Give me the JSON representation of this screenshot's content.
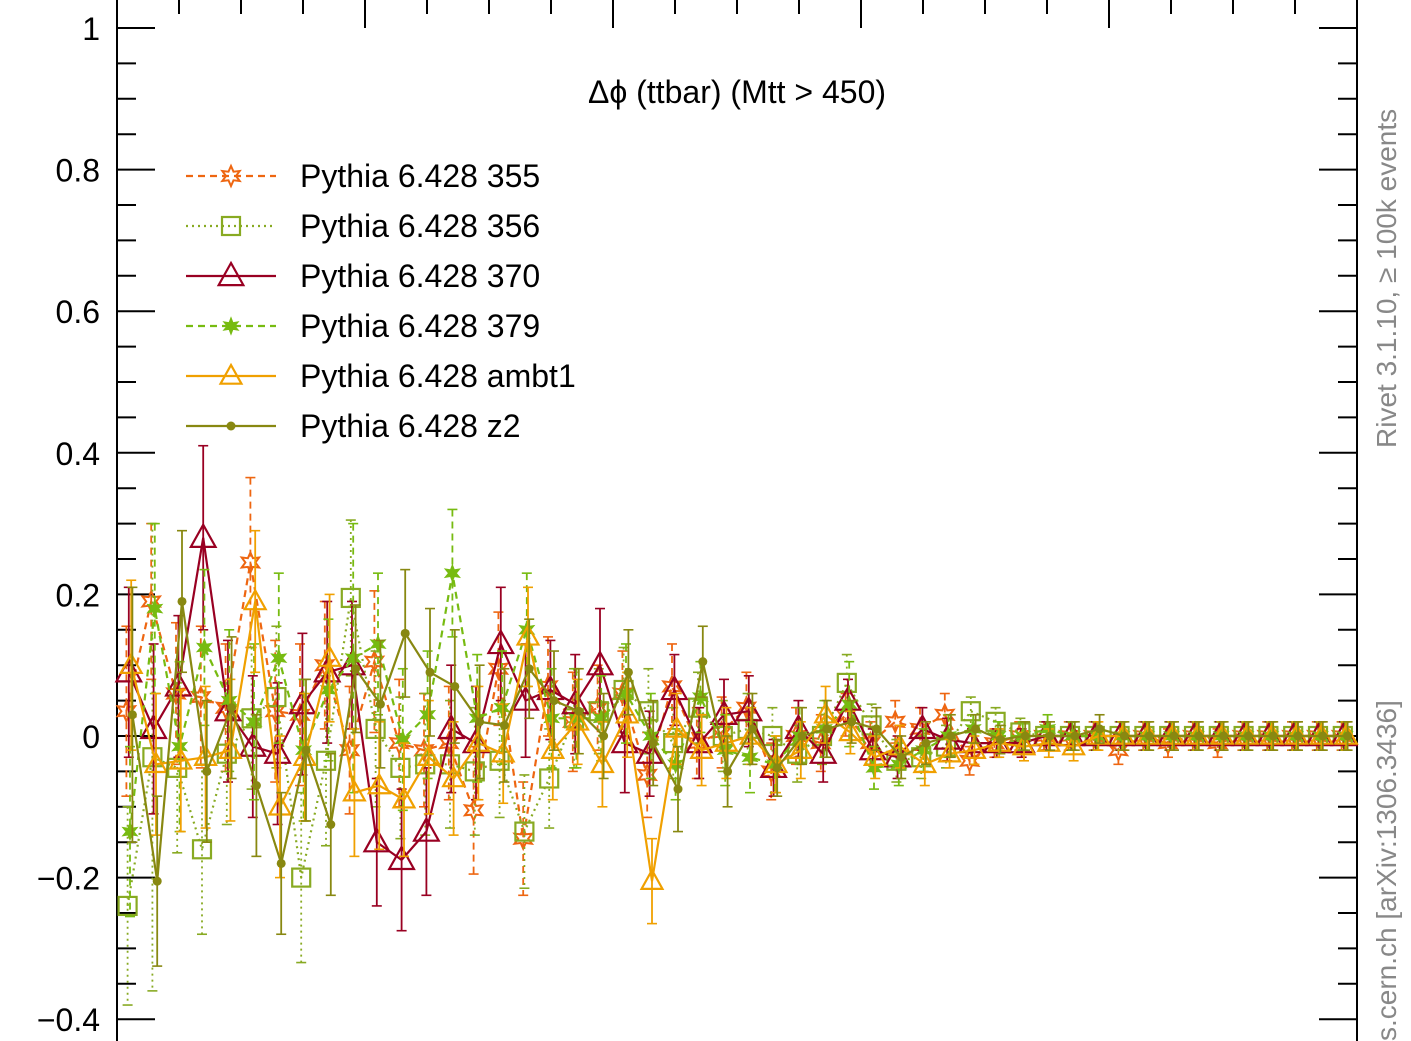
{
  "chart_data": {
    "type": "line",
    "title": "Δϕ (ttbar) (Mtt > 450)",
    "xlabel": "",
    "ylabel": "",
    "xlim": [
      0,
      50
    ],
    "ylim": [
      -0.4,
      1.0
    ],
    "y_ticks": [
      -0.4,
      -0.2,
      0,
      0.2,
      0.4,
      0.6,
      0.8,
      1
    ],
    "y_tick_labels": [
      "−0.4",
      "−0.2",
      "0",
      "0.2",
      "0.4",
      "0.6",
      "0.8",
      "1"
    ],
    "grid": false,
    "legend_position": "top-left",
    "side_label_top": "Rivet 3.1.10, ≥ 100k events",
    "side_label_bottom": "s.cern.ch [arXiv:1306.3436]",
    "x": [
      0.5,
      1.5,
      2.5,
      3.5,
      4.5,
      5.5,
      6.5,
      7.5,
      8.5,
      9.5,
      10.5,
      11.5,
      12.5,
      13.5,
      14.5,
      15.5,
      16.5,
      17.5,
      18.5,
      19.5,
      20.5,
      21.5,
      22.5,
      23.5,
      24.5,
      25.5,
      26.5,
      27.5,
      28.5,
      29.5,
      30.5,
      31.5,
      32.5,
      33.5,
      34.5,
      35.5,
      36.5,
      37.5,
      38.5,
      39.5,
      40.5,
      41.5,
      42.5,
      43.5,
      44.5,
      45.5,
      46.5,
      47.5,
      48.5,
      49.5
    ],
    "series": [
      {
        "name": "Pythia 6.428 355",
        "color": "#ee6611",
        "dash": "7,5",
        "marker": "star6",
        "values": [
          0.035,
          0.19,
          0.06,
          0.055,
          0.04,
          0.245,
          0.035,
          0.03,
          0.1,
          -0.02,
          0.105,
          -0.01,
          -0.02,
          -0.01,
          -0.105,
          0.095,
          -0.145,
          0.07,
          0.02,
          0.04,
          0.06,
          -0.055,
          0.07,
          -0.01,
          0.005,
          0.04,
          -0.05,
          0.0,
          -0.01,
          0.03,
          -0.01,
          0.02,
          0.01,
          0.03,
          -0.035,
          -0.01,
          0.0,
          0.0,
          0.0,
          0.0,
          -0.02,
          0.0,
          -0.01,
          0.0,
          -0.01,
          0.0,
          0.0,
          0.0,
          0.0,
          0.0
        ],
        "errors": [
          0.12,
          0.11,
          0.1,
          0.1,
          0.09,
          0.12,
          0.1,
          0.1,
          0.09,
          0.09,
          0.1,
          0.09,
          0.08,
          0.08,
          0.09,
          0.08,
          0.08,
          0.07,
          0.07,
          0.06,
          0.06,
          0.06,
          0.06,
          0.05,
          0.05,
          0.05,
          0.04,
          0.04,
          0.04,
          0.03,
          0.03,
          0.03,
          0.03,
          0.03,
          0.02,
          0.02,
          0.02,
          0.02,
          0.02,
          0.02,
          0.02,
          0.02,
          0.02,
          0.02,
          0.02,
          0.02,
          0.02,
          0.02,
          0.02,
          0.02
        ]
      },
      {
        "name": "Pythia 6.428 356",
        "color": "#88aa22",
        "dash": "2,4",
        "marker": "square",
        "values": [
          -0.24,
          -0.03,
          -0.045,
          -0.16,
          -0.025,
          0.025,
          0.055,
          -0.2,
          -0.035,
          0.195,
          0.01,
          -0.045,
          -0.04,
          -0.04,
          -0.05,
          -0.035,
          -0.135,
          -0.06,
          0.025,
          0.035,
          0.065,
          0.035,
          -0.01,
          0.04,
          0.0,
          0.01,
          0.0,
          -0.025,
          0.0,
          0.075,
          0.015,
          -0.035,
          -0.03,
          -0.015,
          0.035,
          0.02,
          0.005,
          0.0,
          0.0,
          0.0,
          0.0,
          0.0,
          0.0,
          0.0,
          0.0,
          0.0,
          0.0,
          0.0,
          0.0,
          0.0
        ],
        "errors": [
          0.14,
          0.33,
          0.12,
          0.12,
          0.1,
          0.1,
          0.1,
          0.12,
          0.12,
          0.11,
          0.11,
          0.1,
          0.1,
          0.09,
          0.09,
          0.08,
          0.08,
          0.07,
          0.07,
          0.06,
          0.06,
          0.06,
          0.05,
          0.05,
          0.05,
          0.05,
          0.04,
          0.04,
          0.04,
          0.04,
          0.03,
          0.03,
          0.03,
          0.03,
          0.02,
          0.02,
          0.02,
          0.02,
          0.02,
          0.02,
          0.02,
          0.02,
          0.02,
          0.02,
          0.02,
          0.02,
          0.02,
          0.02,
          0.02,
          0.02
        ]
      },
      {
        "name": "Pythia 6.428 370",
        "color": "#990022",
        "dash": "",
        "marker": "triangle-large",
        "values": [
          0.09,
          0.01,
          0.07,
          0.28,
          0.035,
          -0.015,
          -0.025,
          0.045,
          0.09,
          0.1,
          -0.15,
          -0.175,
          -0.135,
          0.01,
          -0.01,
          0.13,
          0.05,
          0.065,
          0.045,
          0.1,
          -0.01,
          -0.025,
          0.065,
          -0.01,
          0.03,
          0.035,
          -0.045,
          0.01,
          -0.025,
          0.05,
          -0.02,
          -0.03,
          0.01,
          -0.005,
          -0.01,
          -0.01,
          -0.01,
          0.0,
          0.0,
          0.0,
          0.0,
          0.0,
          0.0,
          0.0,
          0.0,
          0.0,
          0.0,
          0.0,
          0.0,
          0.0
        ],
        "errors": [
          0.12,
          0.12,
          0.1,
          0.13,
          0.1,
          0.1,
          0.1,
          0.1,
          0.1,
          0.09,
          0.09,
          0.1,
          0.09,
          0.09,
          0.08,
          0.08,
          0.08,
          0.07,
          0.07,
          0.08,
          0.07,
          0.06,
          0.05,
          0.05,
          0.05,
          0.05,
          0.04,
          0.04,
          0.04,
          0.03,
          0.03,
          0.03,
          0.03,
          0.03,
          0.02,
          0.02,
          0.02,
          0.02,
          0.02,
          0.02,
          0.02,
          0.02,
          0.02,
          0.02,
          0.02,
          0.02,
          0.02,
          0.02,
          0.02,
          0.02
        ]
      },
      {
        "name": "Pythia 6.428 379",
        "color": "#77bb11",
        "dash": "7,5",
        "marker": "star-small",
        "values": [
          -0.135,
          0.18,
          -0.015,
          0.125,
          0.05,
          0.02,
          0.11,
          -0.02,
          0.065,
          0.11,
          0.13,
          -0.005,
          0.03,
          0.23,
          0.025,
          0.04,
          0.15,
          0.025,
          0.025,
          0.025,
          0.06,
          0.0,
          -0.04,
          0.055,
          -0.02,
          -0.03,
          -0.04,
          0.0,
          0.01,
          0.045,
          -0.045,
          -0.04,
          -0.02,
          0.0,
          0.01,
          0.0,
          0.0,
          0.01,
          0.0,
          0.0,
          0.0,
          0.0,
          0.0,
          0.0,
          0.0,
          0.0,
          0.0,
          0.0,
          0.0,
          0.0
        ],
        "errors": [
          0.12,
          0.12,
          0.12,
          0.11,
          0.1,
          0.11,
          0.12,
          0.1,
          0.1,
          0.19,
          0.1,
          0.1,
          0.09,
          0.09,
          0.09,
          0.08,
          0.08,
          0.07,
          0.07,
          0.06,
          0.07,
          0.06,
          0.05,
          0.05,
          0.05,
          0.05,
          0.04,
          0.04,
          0.04,
          0.06,
          0.03,
          0.03,
          0.03,
          0.03,
          0.02,
          0.02,
          0.02,
          0.02,
          0.02,
          0.02,
          0.02,
          0.02,
          0.02,
          0.02,
          0.02,
          0.02,
          0.02,
          0.02,
          0.02,
          0.02
        ]
      },
      {
        "name": "Pythia 6.428 ambt1",
        "color": "#f0a000",
        "dash": "",
        "marker": "triangle",
        "values": [
          0.1,
          -0.04,
          -0.035,
          -0.03,
          -0.02,
          0.19,
          -0.1,
          -0.03,
          0.11,
          -0.08,
          -0.07,
          -0.09,
          -0.03,
          -0.06,
          -0.01,
          -0.025,
          0.14,
          -0.02,
          0.02,
          -0.04,
          0.03,
          -0.205,
          0.01,
          -0.02,
          -0.01,
          0.0,
          -0.04,
          -0.02,
          0.03,
          0.005,
          -0.03,
          -0.015,
          -0.04,
          -0.025,
          -0.02,
          -0.01,
          -0.015,
          -0.01,
          -0.015,
          0.0,
          0.0,
          0.0,
          0.0,
          0.0,
          0.0,
          0.0,
          0.0,
          0.0,
          0.0,
          0.0
        ],
        "errors": [
          0.12,
          0.1,
          0.1,
          0.1,
          0.1,
          0.1,
          0.1,
          0.09,
          0.09,
          0.09,
          0.09,
          0.08,
          0.08,
          0.08,
          0.08,
          0.07,
          0.07,
          0.07,
          0.06,
          0.06,
          0.06,
          0.06,
          0.05,
          0.05,
          0.05,
          0.04,
          0.04,
          0.04,
          0.04,
          0.03,
          0.03,
          0.03,
          0.03,
          0.02,
          0.02,
          0.02,
          0.02,
          0.02,
          0.02,
          0.02,
          0.02,
          0.02,
          0.02,
          0.02,
          0.02,
          0.02,
          0.02,
          0.02,
          0.02,
          0.02
        ]
      },
      {
        "name": "Pythia 6.428 z2",
        "color": "#888811",
        "dash": "",
        "marker": "dot",
        "values": [
          0.03,
          -0.205,
          0.19,
          -0.05,
          0.04,
          -0.07,
          -0.18,
          -0.02,
          -0.125,
          0.095,
          0.045,
          0.145,
          0.09,
          0.07,
          0.02,
          0.015,
          0.095,
          0.05,
          0.035,
          0.0,
          0.09,
          -0.01,
          -0.075,
          0.105,
          -0.05,
          0.01,
          -0.045,
          0.0,
          0.01,
          0.02,
          0.01,
          -0.03,
          -0.01,
          0.0,
          0.01,
          -0.005,
          0.0,
          0.0,
          0.0,
          0.01,
          0.0,
          0.0,
          0.0,
          0.0,
          0.0,
          0.0,
          0.0,
          0.0,
          0.0,
          0.0
        ],
        "errors": [
          0.18,
          0.12,
          0.1,
          0.1,
          0.1,
          0.1,
          0.1,
          0.1,
          0.1,
          0.09,
          0.09,
          0.09,
          0.09,
          0.08,
          0.08,
          0.08,
          0.07,
          0.07,
          0.06,
          0.06,
          0.06,
          0.06,
          0.06,
          0.05,
          0.05,
          0.05,
          0.04,
          0.04,
          0.04,
          0.03,
          0.03,
          0.03,
          0.03,
          0.03,
          0.02,
          0.02,
          0.02,
          0.02,
          0.02,
          0.02,
          0.02,
          0.02,
          0.02,
          0.02,
          0.02,
          0.02,
          0.02,
          0.02,
          0.02,
          0.02
        ]
      }
    ]
  }
}
